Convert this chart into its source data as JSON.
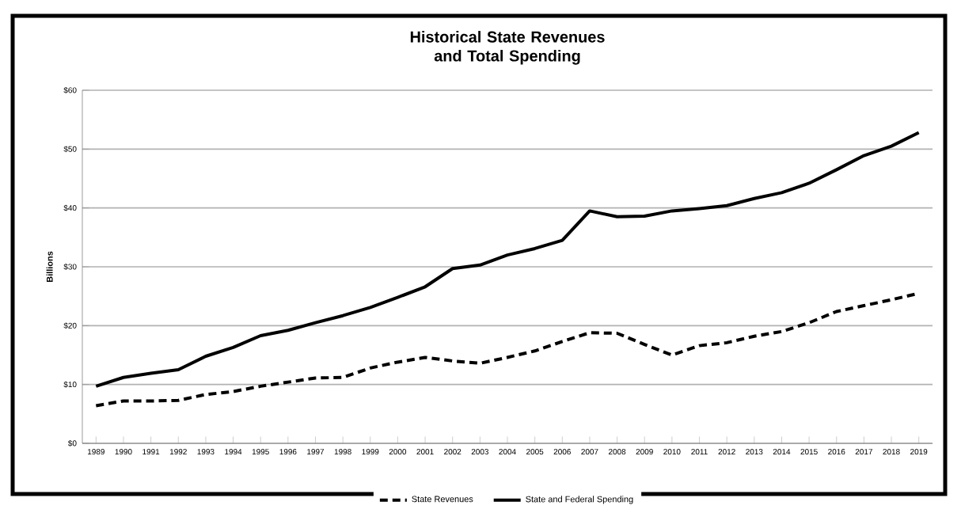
{
  "chart_data": {
    "type": "line",
    "title": "Historical State Revenues\nand Total Spending",
    "ylabel": "Billions",
    "categories": [
      "1989",
      "1990",
      "1991",
      "1992",
      "1993",
      "1994",
      "1995",
      "1996",
      "1997",
      "1998",
      "1999",
      "2000",
      "2001",
      "2002",
      "2003",
      "2004",
      "2005",
      "2006",
      "2007",
      "2008",
      "2009",
      "2010",
      "2011",
      "2012",
      "2013",
      "2014",
      "2015",
      "2016",
      "2017",
      "2018",
      "2019"
    ],
    "series": [
      {
        "name": "State Revenues",
        "color": "#000000",
        "line_style": "dashed",
        "values": [
          6.4,
          7.2,
          7.2,
          7.3,
          8.3,
          8.8,
          9.7,
          10.4,
          11.1,
          11.2,
          12.8,
          13.8,
          14.6,
          14.0,
          13.6,
          14.6,
          15.7,
          17.3,
          18.8,
          18.7,
          16.8,
          15.0,
          16.6,
          17.1,
          18.2,
          19.0,
          20.5,
          22.4,
          23.4,
          24.4,
          25.5
        ]
      },
      {
        "name": "State and Federal Spending",
        "color": "#000000",
        "line_style": "solid",
        "values": [
          9.7,
          11.2,
          11.9,
          12.5,
          14.8,
          16.3,
          18.3,
          19.2,
          20.5,
          21.7,
          23.1,
          24.8,
          26.6,
          29.7,
          30.3,
          32.0,
          33.1,
          34.5,
          39.5,
          38.5,
          38.6,
          39.5,
          39.9,
          40.4,
          41.6,
          42.6,
          44.2,
          46.5,
          48.9,
          50.5,
          52.8
        ]
      }
    ],
    "ylim": [
      0,
      60
    ],
    "yticks": [
      {
        "value": 0,
        "label": "$0"
      },
      {
        "value": 10,
        "label": "$10"
      },
      {
        "value": 20,
        "label": "$20"
      },
      {
        "value": 30,
        "label": "$30"
      },
      {
        "value": 40,
        "label": "$40"
      },
      {
        "value": 50,
        "label": "$50"
      },
      {
        "value": 60,
        "label": "$60"
      }
    ],
    "grid": "y",
    "legend": "bottom",
    "marker": "none"
  }
}
